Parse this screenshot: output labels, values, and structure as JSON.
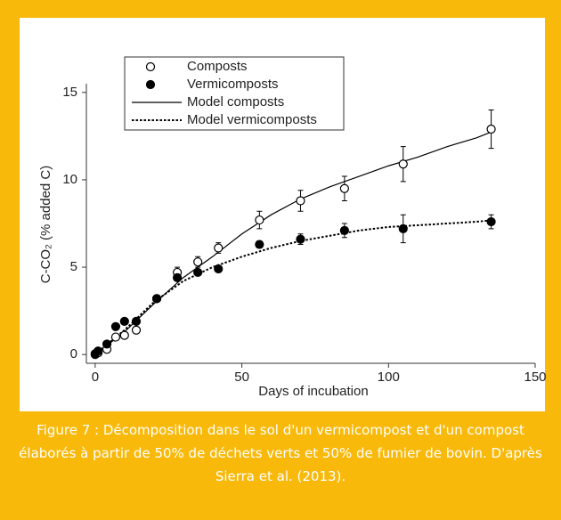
{
  "chart_data": {
    "type": "scatter",
    "xlabel": "Days of incubation",
    "ylabel": "C-CO₂ (% added C)",
    "xlim": [
      -3,
      150
    ],
    "xticks": [
      0,
      50,
      100,
      150
    ],
    "ylim": [
      -0.5,
      15.5
    ],
    "yticks": [
      0,
      5,
      10,
      15
    ],
    "legend": "top-left",
    "series": [
      {
        "name": "Composts",
        "style": "open",
        "color": "#000000",
        "x": [
          0,
          1,
          4,
          7,
          10,
          14,
          21,
          28,
          35,
          42,
          56,
          70,
          85,
          105,
          135
        ],
        "values": [
          0,
          0.1,
          0.3,
          1.0,
          1.1,
          1.4,
          3.2,
          4.7,
          5.3,
          6.1,
          7.7,
          8.8,
          9.5,
          10.9,
          12.9
        ],
        "errors": [
          null,
          null,
          null,
          null,
          null,
          null,
          null,
          0.3,
          0.3,
          0.3,
          0.5,
          0.6,
          0.7,
          1.0,
          1.1
        ]
      },
      {
        "name": "Vermicomposts",
        "style": "filled",
        "color": "#000000",
        "x": [
          0,
          1,
          4,
          7,
          10,
          14,
          21,
          28,
          35,
          42,
          56,
          70,
          85,
          105,
          135
        ],
        "values": [
          0.05,
          0.2,
          0.6,
          1.6,
          1.9,
          1.9,
          3.2,
          4.4,
          4.7,
          4.9,
          6.3,
          6.6,
          7.1,
          7.2,
          7.6
        ],
        "errors": [
          null,
          null,
          null,
          null,
          null,
          null,
          null,
          null,
          null,
          null,
          0.2,
          0.3,
          0.4,
          0.8,
          0.4
        ]
      },
      {
        "name": "Model composts",
        "style": "solid",
        "color": "#000000",
        "x": [
          0,
          10,
          20,
          30,
          40,
          50,
          60,
          70,
          80,
          90,
          100,
          110,
          120,
          130,
          136
        ],
        "values": [
          0,
          1.3,
          2.9,
          4.4,
          5.6,
          6.9,
          8.0,
          8.9,
          9.6,
          10.2,
          10.8,
          11.3,
          11.9,
          12.4,
          12.8
        ]
      },
      {
        "name": "Model vermicomposts",
        "style": "dotted",
        "color": "#000000",
        "x": [
          0,
          10,
          20,
          30,
          40,
          50,
          60,
          70,
          80,
          90,
          100,
          110,
          120,
          130,
          136
        ],
        "values": [
          0,
          1.4,
          3.0,
          4.2,
          5.0,
          5.6,
          6.1,
          6.5,
          6.8,
          7.1,
          7.3,
          7.4,
          7.5,
          7.6,
          7.7
        ]
      }
    ]
  },
  "caption": "Figure 7 : Décomposition dans le sol d'un vermicompost et d'un compost élaborés à partir de 50% de déchets verts et 50% de fumier de bovin. D'après Sierra et al. (2013)."
}
